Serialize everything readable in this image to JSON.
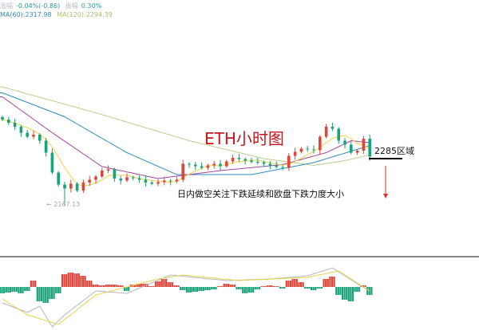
{
  "header": {
    "change_label": "涨幅",
    "change_value": "-0.04%(-0.86)",
    "amplitude_label": "振幅",
    "amplitude_value": "0.30%",
    "ma60_text": "MA(60):2317.98",
    "ma120_text": "MA(120):2294.39"
  },
  "annotations": {
    "title": "ETH小时图",
    "zone_label": "2285区域",
    "note": "日内做空关注下跌延续和欧盘下跌力度大小",
    "low_marker": "← 2167.13"
  },
  "colors": {
    "up": "#e0453a",
    "down": "#1aa27a",
    "ma_short": "#f2cf4a",
    "ma_mid": "#a2479e",
    "ma60": "#2e8bc0",
    "ma120": "#b7cf8c",
    "dif": "#b4b6c2",
    "dea": "#e9d34a",
    "title": "#c8161d",
    "arrow": "#e0302a"
  },
  "chart_data": [
    {
      "type": "candlestick",
      "timeframe": "1h",
      "closes": [
        2383,
        2375,
        2365,
        2350,
        2340,
        2345,
        2330,
        2300,
        2250,
        2220,
        2210,
        2222,
        2205,
        2225,
        2232,
        2240,
        2255,
        2258,
        2235,
        2230,
        2238,
        2236,
        2232,
        2225,
        2222,
        2226,
        2230,
        2228,
        2232,
        2272,
        2270,
        2266,
        2262,
        2268,
        2272,
        2266,
        2278,
        2287,
        2284,
        2280,
        2277,
        2276,
        2272,
        2268,
        2264,
        2262,
        2292,
        2302,
        2310,
        2308,
        2306,
        2340,
        2365,
        2360,
        2330,
        2320,
        2300,
        2305,
        2335,
        2290
      ],
      "low_point": {
        "index": 10,
        "value": 2167.13
      },
      "ma_series": {
        "ma_mid": [
          [
            0,
            2440
          ],
          [
            8,
            2350
          ],
          [
            16,
            2265
          ],
          [
            25,
            2235
          ],
          [
            35,
            2255
          ],
          [
            45,
            2270
          ],
          [
            52,
            2300
          ],
          [
            56,
            2330
          ],
          [
            59,
            2325
          ]
        ],
        "ma60": [
          [
            0,
            2450
          ],
          [
            10,
            2390
          ],
          [
            20,
            2300
          ],
          [
            28,
            2245
          ],
          [
            40,
            2245
          ],
          [
            50,
            2275
          ],
          [
            59,
            2317.98
          ]
        ],
        "ma120": [
          [
            0,
            2465
          ],
          [
            15,
            2400
          ],
          [
            30,
            2330
          ],
          [
            42,
            2285
          ],
          [
            50,
            2268
          ],
          [
            55,
            2280
          ],
          [
            59,
            2294.39
          ]
        ]
      },
      "horizontal_level": 2285,
      "ylim": [
        2150,
        2480
      ]
    },
    {
      "type": "macd",
      "histogram": [
        -8,
        -7,
        -6,
        -8,
        -5,
        8,
        -18,
        -20,
        -15,
        -8,
        16,
        18,
        17,
        14,
        8,
        3,
        2,
        3,
        3,
        2,
        -5,
        3,
        4,
        4,
        1,
        7,
        10,
        6,
        2,
        -4,
        -7,
        -6,
        -5,
        -4,
        -3,
        1,
        4,
        3,
        -3,
        -8,
        -7,
        -3,
        1,
        2,
        1,
        -2,
        8,
        10,
        6,
        -2,
        -4,
        -2,
        10,
        13,
        -10,
        -16,
        -18,
        -6,
        2,
        -10
      ],
      "dif": [
        [
          0,
          -20
        ],
        [
          4,
          -32
        ],
        [
          6,
          -24
        ],
        [
          8,
          -50
        ],
        [
          10,
          -35
        ],
        [
          15,
          -5
        ],
        [
          20,
          -8
        ],
        [
          27,
          15
        ],
        [
          36,
          8
        ],
        [
          43,
          10
        ],
        [
          49,
          14
        ],
        [
          53,
          24
        ],
        [
          57,
          4
        ],
        [
          59,
          -5
        ]
      ],
      "dea": [
        [
          0,
          -15
        ],
        [
          4,
          -35
        ],
        [
          9,
          -47
        ],
        [
          15,
          -10
        ],
        [
          25,
          10
        ],
        [
          29,
          15
        ],
        [
          38,
          8
        ],
        [
          49,
          12
        ],
        [
          54,
          20
        ],
        [
          57,
          5
        ],
        [
          59,
          -5
        ]
      ]
    }
  ]
}
